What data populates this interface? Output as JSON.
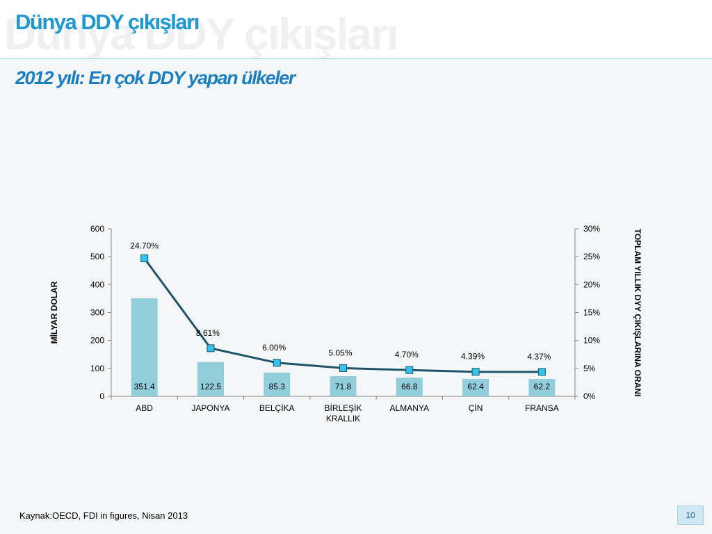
{
  "slide": {
    "title": "Dünya DDY çıkışları",
    "subtitle": "2012 yılı: En çok DDY yapan ülkeler",
    "source": "Kaynak:OECD, FDI in figures, Nisan 2013",
    "page_number": "10"
  },
  "chart_data": {
    "type": "bar",
    "categories": [
      [
        "ABD"
      ],
      [
        "JAPONYA"
      ],
      [
        "BELÇİKA"
      ],
      [
        "BİRLEŞİK",
        "KRALLIK"
      ],
      [
        "ALMANYA"
      ],
      [
        "ÇİN"
      ],
      [
        "FRANSA"
      ]
    ],
    "series": [
      {
        "type": "bar",
        "axis": "left",
        "values": [
          351.4,
          122.5,
          85.3,
          71.8,
          66.8,
          62.4,
          62.2
        ],
        "labels": [
          "351.4",
          "122.5",
          "85.3",
          "71.8",
          "66.8",
          "62.4",
          "62.2"
        ],
        "color": "#92cddc"
      },
      {
        "type": "line",
        "axis": "right",
        "values": [
          24.7,
          8.61,
          6.0,
          5.05,
          4.7,
          4.39,
          4.37
        ],
        "labels": [
          "24.70%",
          "8.61%",
          "6.00%",
          "5.05%",
          "4.70%",
          "4.39%",
          "4.37%"
        ],
        "line_color": "#1f5468",
        "marker_color": "#33c3f0"
      }
    ],
    "y_left": {
      "label": "MİLYAR DOLAR",
      "ylim": [
        0,
        600
      ],
      "ticks": [
        "0",
        "100",
        "200",
        "300",
        "400",
        "500",
        "600"
      ]
    },
    "y_right": {
      "label": "TOPLAM YILLIK  DYY ÇIKIŞLARINA ORANI",
      "ylim": [
        0,
        30
      ],
      "ticks": [
        "0%",
        "5%",
        "10%",
        "15%",
        "20%",
        "25%",
        "30%"
      ]
    },
    "grid": false,
    "legend": "none"
  }
}
